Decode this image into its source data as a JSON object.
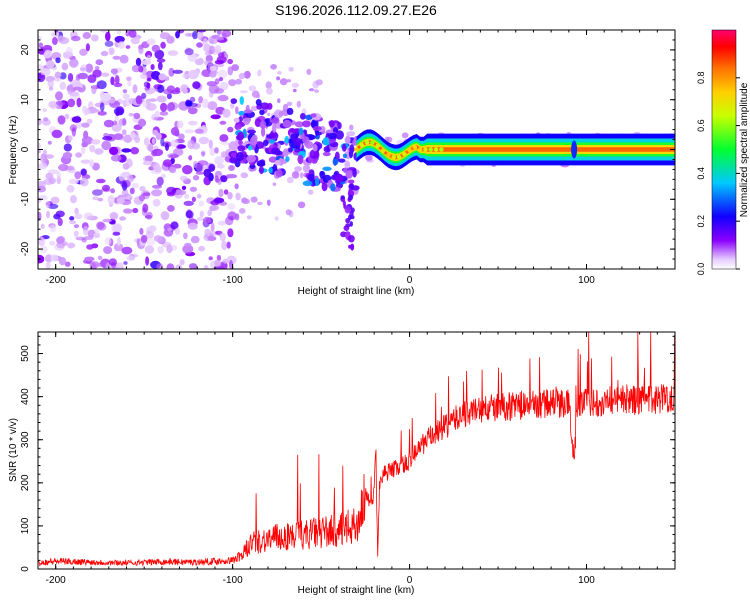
{
  "title": "S196.2026.112.09.27.E26",
  "chart_data": [
    {
      "type": "heatmap",
      "title": "S196.2026.112.09.27.E26",
      "xlabel": "Height of straight line (km)",
      "ylabel": "Frequency (Hz)",
      "xlim": [
        -210,
        150
      ],
      "ylim": [
        -24,
        24
      ],
      "x_ticks": [
        -200,
        -100,
        0,
        100
      ],
      "y_ticks": [
        -20,
        -10,
        0,
        10,
        20
      ],
      "colorbar": {
        "label": "Normalized spectral amplitude",
        "range": [
          0,
          1
        ],
        "ticks": [
          0.0,
          0.2,
          0.4,
          0.6,
          0.8
        ],
        "tick_labels": [
          "0.0",
          "0.2",
          "0.4",
          "0.6",
          "0.8"
        ]
      },
      "features": [
        {
          "name": "noise",
          "x_range": [
            -210,
            -100
          ],
          "f_range": [
            -24,
            24
          ]
        },
        {
          "name": "scattered",
          "x_range": [
            -100,
            -30
          ],
          "f_range": [
            -20,
            15
          ]
        },
        {
          "name": "ridge",
          "x_range": [
            -30,
            150
          ],
          "freq_hz": 0,
          "amplitude": 0.85
        }
      ]
    },
    {
      "type": "line",
      "title": "",
      "xlabel": "Height of straight line (km)",
      "ylabel": "SNR (10 * v/v)",
      "xlim": [
        -210,
        150
      ],
      "ylim": [
        0,
        550
      ],
      "x_ticks": [
        -200,
        -100,
        0,
        100
      ],
      "y_ticks": [
        0,
        100,
        200,
        300,
        400,
        500
      ],
      "series": [
        {
          "name": "SNR",
          "color": "#ff0000",
          "x": [
            -210,
            -200,
            -180,
            -160,
            -140,
            -120,
            -100,
            -95,
            -90,
            -80,
            -70,
            -60,
            -50,
            -40,
            -35,
            -30,
            -27,
            -25,
            -23,
            -21,
            -19,
            -18,
            -17,
            -15,
            -10,
            -5,
            0,
            5,
            10,
            20,
            30,
            40,
            50,
            60,
            70,
            80,
            90,
            93,
            95,
            100,
            110,
            120,
            130,
            140,
            150
          ],
          "y": [
            15,
            18,
            16,
            14,
            17,
            16,
            20,
            30,
            60,
            70,
            75,
            80,
            85,
            90,
            95,
            100,
            140,
            180,
            160,
            150,
            260,
            30,
            200,
            220,
            230,
            240,
            250,
            280,
            300,
            330,
            360,
            370,
            375,
            380,
            380,
            385,
            385,
            250,
            390,
            385,
            390,
            395,
            390,
            395,
            400
          ]
        }
      ]
    }
  ]
}
